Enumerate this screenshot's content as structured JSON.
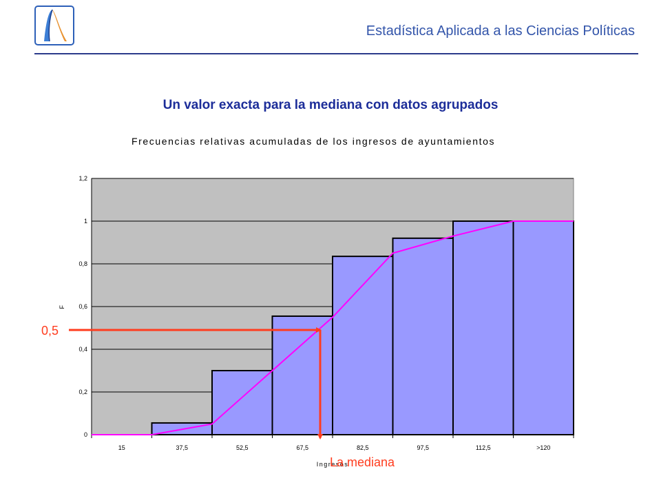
{
  "header": {
    "course_title": "Estadística Aplicada a las Ciencias Políticas"
  },
  "slide_title": "Un valor exacta para la mediana con datos agrupados",
  "colors": {
    "bar_fill": "#9999ff",
    "plot_bg": "#c0c0c0",
    "line": "#ff00ff",
    "annotation": "#ff3c1e",
    "header_text": "#3355aa",
    "title_text": "#1c2d99"
  },
  "logo": {
    "icon": "sigma-wave-logo-icon"
  },
  "chart_data": {
    "type": "bar",
    "title": "Frecuencias relativas acumuladas de los ingresos de ayuntamientos",
    "xlabel": "Ingresos",
    "ylabel": "F",
    "categories": [
      "15",
      "37,5",
      "52,5",
      "67,5",
      "82,5",
      "97,5",
      "112,5",
      ">120"
    ],
    "y_tick_labels": [
      "0",
      "0,2",
      "0,4",
      "0,6",
      "0,8",
      "1",
      "1,2"
    ],
    "ylim": [
      0,
      1.2
    ],
    "grid": true,
    "bar_series": {
      "values": [
        0,
        0.055,
        0.3,
        0.555,
        0.835,
        0.92,
        1.0,
        1.0
      ]
    },
    "line_series": {
      "values": [
        0,
        0,
        0.05,
        0.3,
        0.55,
        0.85,
        0.93,
        1.0,
        1.0
      ]
    },
    "annotations": {
      "y_marker_value": 0.5,
      "y_marker_label": "0,5",
      "x_marker_label": "La mediana"
    }
  }
}
